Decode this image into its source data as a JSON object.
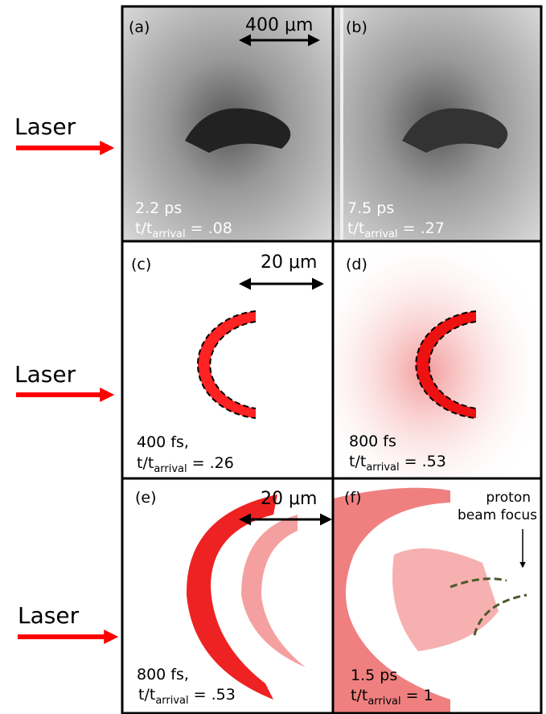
{
  "laser_labels": [
    "Laser",
    "Laser",
    "Laser"
  ],
  "panels": [
    {
      "label": "(a)",
      "scale_bar": "400 μm",
      "time": "2.2 ps",
      "ratio": {
        "base": "t/t",
        "sub": "arrival",
        "value": " = .08"
      }
    },
    {
      "label": "(b)",
      "time": "7.5 ps",
      "ratio": {
        "base": "t/t",
        "sub": "arrival",
        "value": " = .27"
      }
    },
    {
      "label": "(c)",
      "scale_bar": "20 μm",
      "time": "400 fs,",
      "ratio": {
        "base": "t/t",
        "sub": "arrival",
        "value": " = .26"
      }
    },
    {
      "label": "(d)",
      "time": "800 fs",
      "ratio": {
        "base": "t/t",
        "sub": "arrival",
        "value": " = .53"
      }
    },
    {
      "label": "(e)",
      "scale_bar": "20 μm",
      "time": "800 fs,",
      "ratio": {
        "base": "t/t",
        "sub": "arrival",
        "value": " = .53"
      }
    },
    {
      "label": "(f)",
      "time": "1.5 ps",
      "ratio": {
        "base": "t/t",
        "sub": "arrival",
        "value": " = 1"
      },
      "annotation": [
        "proton",
        "beam focus"
      ]
    }
  ]
}
